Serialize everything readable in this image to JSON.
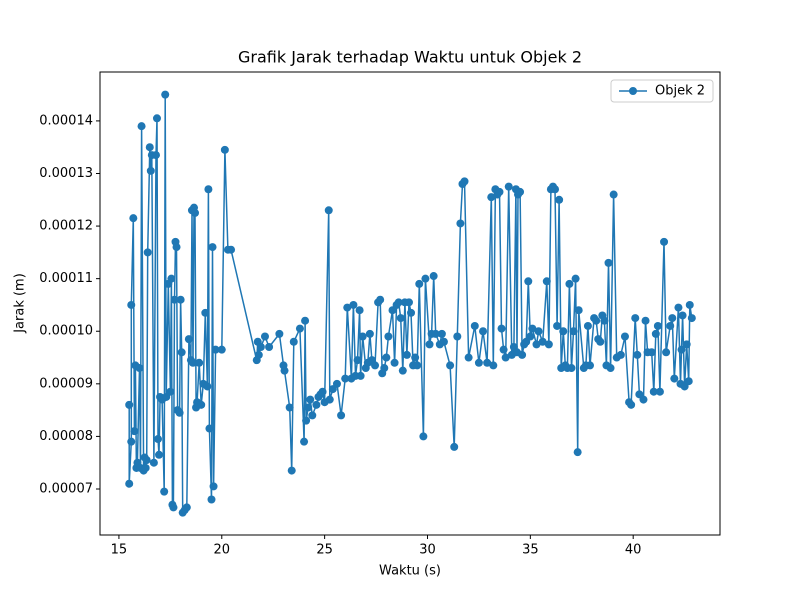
{
  "chart_data": {
    "type": "line",
    "title": "Grafik Jarak terhadap Waktu untuk Objek 2",
    "xlabel": "Waktu (s)",
    "ylabel": "Jarak (m)",
    "legend": "upper right",
    "x": [
      15.5,
      15.5,
      15.6,
      15.6,
      15.7,
      15.75,
      15.8,
      15.85,
      15.9,
      16.0,
      16.05,
      16.1,
      16.2,
      16.25,
      16.3,
      16.35,
      16.4,
      16.5,
      16.55,
      16.6,
      16.7,
      16.8,
      16.85,
      16.9,
      16.95,
      17.0,
      17.1,
      17.2,
      17.25,
      17.3,
      17.4,
      17.5,
      17.55,
      17.6,
      17.65,
      17.7,
      17.75,
      17.8,
      17.85,
      17.95,
      18.0,
      18.05,
      18.1,
      18.2,
      18.3,
      18.4,
      18.5,
      18.55,
      18.6,
      18.65,
      18.7,
      18.75,
      18.8,
      18.9,
      19.0,
      19.1,
      19.2,
      19.3,
      19.35,
      19.4,
      19.5,
      19.55,
      19.6,
      19.7,
      20.0,
      20.15,
      20.3,
      20.45,
      21.7,
      21.75,
      21.8,
      21.9,
      22.1,
      22.3,
      22.8,
      23.0,
      23.05,
      23.3,
      23.4,
      23.5,
      23.8,
      24.0,
      24.05,
      24.1,
      24.2,
      24.3,
      24.4,
      24.6,
      24.7,
      24.8,
      24.9,
      25.0,
      25.2,
      25.25,
      25.4,
      25.6,
      25.8,
      26.0,
      26.1,
      26.3,
      26.4,
      26.5,
      26.6,
      26.7,
      26.75,
      26.85,
      27.0,
      27.1,
      27.2,
      27.3,
      27.45,
      27.6,
      27.7,
      27.8,
      27.9,
      28.0,
      28.1,
      28.3,
      28.4,
      28.5,
      28.6,
      28.7,
      28.8,
      28.9,
      29.0,
      29.1,
      29.2,
      29.3,
      29.4,
      29.5,
      29.6,
      29.8,
      29.9,
      30.1,
      30.2,
      30.3,
      30.4,
      30.6,
      30.7,
      30.8,
      31.1,
      31.3,
      31.45,
      31.6,
      31.7,
      31.8,
      32.0,
      32.3,
      32.5,
      32.7,
      32.9,
      33.1,
      33.2,
      33.3,
      33.4,
      33.5,
      33.6,
      33.7,
      33.8,
      33.95,
      34.1,
      34.2,
      34.3,
      34.35,
      34.4,
      34.5,
      34.6,
      34.7,
      34.8,
      34.9,
      35.0,
      35.1,
      35.3,
      35.4,
      35.6,
      35.8,
      35.9,
      36.0,
      36.1,
      36.2,
      36.3,
      36.4,
      36.5,
      36.6,
      36.7,
      36.8,
      36.9,
      37.0,
      37.1,
      37.2,
      37.3,
      37.35,
      37.6,
      37.7,
      37.8,
      37.9,
      38.1,
      38.2,
      38.3,
      38.4,
      38.5,
      38.6,
      38.7,
      38.8,
      38.9,
      39.05,
      39.2,
      39.4,
      39.6,
      39.8,
      39.9,
      40.1,
      40.2,
      40.3,
      40.5,
      40.6,
      40.7,
      40.9,
      41.0,
      41.1,
      41.2,
      41.3,
      41.5,
      41.6,
      41.8,
      41.9,
      42.0,
      42.2,
      42.3,
      42.35,
      42.4,
      42.5,
      42.6,
      42.7,
      42.75,
      42.85
    ],
    "series": [
      {
        "name": "Objek 2",
        "color": "#1f77b4",
        "values": [
          8.6e-05,
          7.1e-05,
          7.9e-05,
          0.000105,
          0.0001215,
          8.1e-05,
          9.35e-05,
          7.4e-05,
          7.5e-05,
          9.3e-05,
          7.4e-05,
          0.000139,
          7.35e-05,
          7.6e-05,
          7.4e-05,
          7.55e-05,
          0.000115,
          0.000135,
          0.0001305,
          0.0001335,
          7.5e-05,
          0.0001335,
          0.0001405,
          7.95e-05,
          7.65e-05,
          8.75e-05,
          8.7e-05,
          6.95e-05,
          0.000145,
          8.75e-05,
          0.000109,
          8.85e-05,
          0.00011,
          6.7e-05,
          6.65e-05,
          0.000106,
          0.000117,
          0.000116,
          8.5e-05,
          8.45e-05,
          0.000106,
          9.6e-05,
          6.55e-05,
          6.6e-05,
          6.65e-05,
          9.85e-05,
          9.45e-05,
          0.000123,
          9.4e-05,
          0.0001235,
          0.0001225,
          8.55e-05,
          8.65e-05,
          9.4e-05,
          8.6e-05,
          9e-05,
          0.0001035,
          8.95e-05,
          0.000127,
          8.15e-05,
          6.8e-05,
          0.000116,
          7.05e-05,
          9.65e-05,
          9.65e-05,
          0.0001345,
          0.0001155,
          0.0001155,
          9.45e-05,
          9.8e-05,
          9.55e-05,
          9.7e-05,
          9.9e-05,
          9.7e-05,
          9.95e-05,
          9.35e-05,
          9.25e-05,
          8.55e-05,
          7.35e-05,
          9.8e-05,
          0.0001005,
          7.9e-05,
          0.000102,
          8.3e-05,
          8.55e-05,
          8.7e-05,
          8.4e-05,
          8.6e-05,
          8.75e-05,
          8.8e-05,
          8.85e-05,
          8.65e-05,
          0.000123,
          8.7e-05,
          8.9e-05,
          9e-05,
          8.4e-05,
          9.1e-05,
          0.0001045,
          9.1e-05,
          0.000105,
          9.15e-05,
          9.45e-05,
          0.000104,
          9.15e-05,
          9.9e-05,
          9.3e-05,
          9.4e-05,
          9.95e-05,
          9.45e-05,
          9.35e-05,
          0.0001055,
          0.000106,
          9.2e-05,
          9.3e-05,
          9.5e-05,
          9.9e-05,
          0.000104,
          9.4e-05,
          0.000105,
          0.0001055,
          0.0001025,
          9.25e-05,
          0.0001055,
          9.55e-05,
          0.0001055,
          0.0001035,
          9.35e-05,
          9.5e-05,
          9.35e-05,
          0.000109,
          8e-05,
          0.00011,
          9.75e-05,
          9.95e-05,
          0.0001105,
          9.95e-05,
          9.75e-05,
          9.95e-05,
          9.8e-05,
          9.35e-05,
          7.8e-05,
          9.9e-05,
          0.0001205,
          0.000128,
          0.0001285,
          9.5e-05,
          0.000101,
          9.4e-05,
          0.0001,
          9.4e-05,
          0.0001255,
          9.35e-05,
          0.000127,
          0.000126,
          0.0001265,
          0.0001005,
          9.65e-05,
          9.5e-05,
          0.0001275,
          9.55e-05,
          9.7e-05,
          0.000127,
          9.6e-05,
          0.000126,
          0.0001265,
          9.55e-05,
          9.75e-05,
          9.8e-05,
          0.0001095,
          9.9e-05,
          0.0001005,
          9.75e-05,
          0.0001,
          9.8e-05,
          0.0001095,
          9.75e-05,
          0.000127,
          0.0001275,
          0.000127,
          0.000101,
          0.000125,
          9.3e-05,
          0.0001,
          9.35e-05,
          9.3e-05,
          0.000109,
          9.3e-05,
          0.0001,
          0.00011,
          7.7e-05,
          0.000104,
          9.3e-05,
          9.35e-05,
          0.000101,
          9.35e-05,
          0.0001025,
          0.000102,
          9.85e-05,
          9.8e-05,
          0.000103,
          0.000102,
          9.35e-05,
          0.000113,
          9.3e-05,
          0.000126,
          9.5e-05,
          9.55e-05,
          9.9e-05,
          8.65e-05,
          8.6e-05,
          0.0001025,
          9.55e-05,
          8.8e-05,
          8.7e-05,
          0.000102,
          9.6e-05,
          9.6e-05,
          8.85e-05,
          9.95e-05,
          0.000101,
          8.85e-05,
          0.000117,
          9.6e-05,
          0.000101,
          0.0001025,
          9.1e-05,
          0.0001045,
          9e-05,
          9.65e-05,
          0.000103,
          8.95e-05,
          9.75e-05,
          9.05e-05,
          0.000105,
          0.0001025
        ]
      }
    ],
    "xlim": [
      14.08,
      44.22
    ],
    "xticks": [
      15,
      20,
      25,
      30,
      35,
      40
    ],
    "ylim": [
      6.125e-05,
      0.0001493
    ],
    "yticks": [
      7e-05,
      8e-05,
      9e-05,
      {
        "value": 0.0001,
        "label": "0.00010"
      },
      0.00011,
      0.00012,
      0.00013,
      0.00014
    ]
  }
}
